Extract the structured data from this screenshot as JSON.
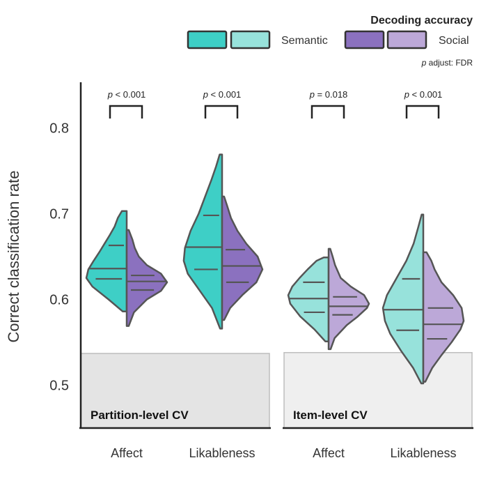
{
  "chart_data": {
    "type": "violin",
    "ylabel": "Correct classification rate",
    "ylim": [
      0.45,
      0.86
    ],
    "yticks": [
      0.5,
      0.6,
      0.7,
      0.8
    ],
    "legend": {
      "title": "Decoding accuracy",
      "entries": [
        {
          "name": "Semantic",
          "colors": [
            "#3ecfc6",
            "#97e2db"
          ]
        },
        {
          "name": "Social",
          "colors": [
            "#8b71bf",
            "#bca8d8"
          ]
        }
      ],
      "placement": "top-right"
    },
    "p_adjust_note": {
      "prefix": "p",
      "text": " adjust: FDR"
    },
    "panels": [
      {
        "label": "Partition-level CV",
        "chance_level": 0.537,
        "shade": "#e4e4e4",
        "groups": [
          {
            "category": "Affect",
            "p_prefix": "p",
            "p_text": " < 0.001",
            "semantic": {
              "color": "#3ecfc6",
              "min": 0.586,
              "max": 0.703,
              "quartiles": [
                0.624,
                0.636,
                0.663
              ],
              "density": [
                [
                  0.586,
                  0.1
                ],
                [
                  0.6,
                  0.45
                ],
                [
                  0.615,
                  0.85
                ],
                [
                  0.625,
                  1.0
                ],
                [
                  0.635,
                  0.95
                ],
                [
                  0.645,
                  0.82
                ],
                [
                  0.655,
                  0.68
                ],
                [
                  0.665,
                  0.55
                ],
                [
                  0.675,
                  0.42
                ],
                [
                  0.685,
                  0.3
                ],
                [
                  0.695,
                  0.22
                ],
                [
                  0.703,
                  0.12
                ]
              ]
            },
            "social": {
              "color": "#8b71bf",
              "min": 0.569,
              "max": 0.681,
              "quartiles": [
                0.611,
                0.621,
                0.628
              ],
              "density": [
                [
                  0.569,
                  0.05
                ],
                [
                  0.585,
                  0.18
                ],
                [
                  0.6,
                  0.5
                ],
                [
                  0.61,
                  0.85
                ],
                [
                  0.62,
                  1.0
                ],
                [
                  0.63,
                  0.85
                ],
                [
                  0.64,
                  0.5
                ],
                [
                  0.65,
                  0.3
                ],
                [
                  0.66,
                  0.2
                ],
                [
                  0.67,
                  0.14
                ],
                [
                  0.681,
                  0.05
                ]
              ]
            }
          },
          {
            "category": "Likableness",
            "p_prefix": "p",
            "p_text": " < 0.001",
            "semantic": {
              "color": "#3ecfc6",
              "min": 0.566,
              "max": 0.769,
              "quartiles": [
                0.635,
                0.661,
                0.698
              ],
              "density": [
                [
                  0.566,
                  0.05
                ],
                [
                  0.59,
                  0.25
                ],
                [
                  0.61,
                  0.55
                ],
                [
                  0.63,
                  0.85
                ],
                [
                  0.645,
                  0.95
                ],
                [
                  0.66,
                  0.92
                ],
                [
                  0.68,
                  0.78
                ],
                [
                  0.7,
                  0.58
                ],
                [
                  0.72,
                  0.42
                ],
                [
                  0.74,
                  0.26
                ],
                [
                  0.755,
                  0.15
                ],
                [
                  0.769,
                  0.06
                ]
              ]
            },
            "social": {
              "color": "#8b71bf",
              "min": 0.576,
              "max": 0.72,
              "quartiles": [
                0.62,
                0.639,
                0.658
              ],
              "density": [
                [
                  0.576,
                  0.05
                ],
                [
                  0.59,
                  0.2
                ],
                [
                  0.605,
                  0.5
                ],
                [
                  0.62,
                  0.85
                ],
                [
                  0.635,
                  1.0
                ],
                [
                  0.65,
                  0.88
                ],
                [
                  0.665,
                  0.6
                ],
                [
                  0.68,
                  0.38
                ],
                [
                  0.695,
                  0.22
                ],
                [
                  0.71,
                  0.12
                ],
                [
                  0.72,
                  0.05
                ]
              ]
            }
          }
        ]
      },
      {
        "label": "Item-level CV",
        "chance_level": 0.538,
        "shade": "#efefef",
        "groups": [
          {
            "category": "Affect",
            "p_prefix": "p",
            "p_text": " = 0.018",
            "semantic": {
              "color": "#97e2db",
              "min": 0.551,
              "max": 0.649,
              "quartiles": [
                0.585,
                0.601,
                0.62
              ],
              "density": [
                [
                  0.551,
                  0.08
                ],
                [
                  0.565,
                  0.35
                ],
                [
                  0.58,
                  0.7
                ],
                [
                  0.595,
                  0.95
                ],
                [
                  0.605,
                  1.0
                ],
                [
                  0.615,
                  0.9
                ],
                [
                  0.625,
                  0.72
                ],
                [
                  0.635,
                  0.52
                ],
                [
                  0.645,
                  0.3
                ],
                [
                  0.649,
                  0.12
                ]
              ]
            },
            "social": {
              "color": "#bca8d8",
              "min": 0.542,
              "max": 0.659,
              "quartiles": [
                0.582,
                0.592,
                0.603
              ],
              "density": [
                [
                  0.542,
                  0.05
                ],
                [
                  0.555,
                  0.15
                ],
                [
                  0.57,
                  0.45
                ],
                [
                  0.58,
                  0.72
                ],
                [
                  0.59,
                  0.95
                ],
                [
                  0.595,
                  1.0
                ],
                [
                  0.605,
                  0.88
                ],
                [
                  0.615,
                  0.55
                ],
                [
                  0.625,
                  0.3
                ],
                [
                  0.64,
                  0.16
                ],
                [
                  0.65,
                  0.1
                ],
                [
                  0.659,
                  0.04
                ]
              ]
            }
          },
          {
            "category": "Likableness",
            "p_prefix": "p",
            "p_text": " < 0.001",
            "semantic": {
              "color": "#97e2db",
              "min": 0.502,
              "max": 0.699,
              "quartiles": [
                0.564,
                0.588,
                0.624
              ],
              "density": [
                [
                  0.502,
                  0.05
                ],
                [
                  0.52,
                  0.25
                ],
                [
                  0.54,
                  0.55
                ],
                [
                  0.56,
                  0.82
                ],
                [
                  0.575,
                  0.95
                ],
                [
                  0.59,
                  1.0
                ],
                [
                  0.605,
                  0.9
                ],
                [
                  0.625,
                  0.66
                ],
                [
                  0.645,
                  0.42
                ],
                [
                  0.665,
                  0.24
                ],
                [
                  0.685,
                  0.12
                ],
                [
                  0.699,
                  0.04
                ]
              ]
            },
            "social": {
              "color": "#bca8d8",
              "min": 0.504,
              "max": 0.655,
              "quartiles": [
                0.554,
                0.571,
                0.59
              ],
              "density": [
                [
                  0.504,
                  0.05
                ],
                [
                  0.52,
                  0.22
                ],
                [
                  0.535,
                  0.45
                ],
                [
                  0.55,
                  0.7
                ],
                [
                  0.565,
                  0.92
                ],
                [
                  0.575,
                  1.0
                ],
                [
                  0.59,
                  0.95
                ],
                [
                  0.605,
                  0.74
                ],
                [
                  0.62,
                  0.45
                ],
                [
                  0.635,
                  0.28
                ],
                [
                  0.645,
                  0.2
                ],
                [
                  0.655,
                  0.08
                ]
              ]
            }
          }
        ]
      }
    ]
  }
}
